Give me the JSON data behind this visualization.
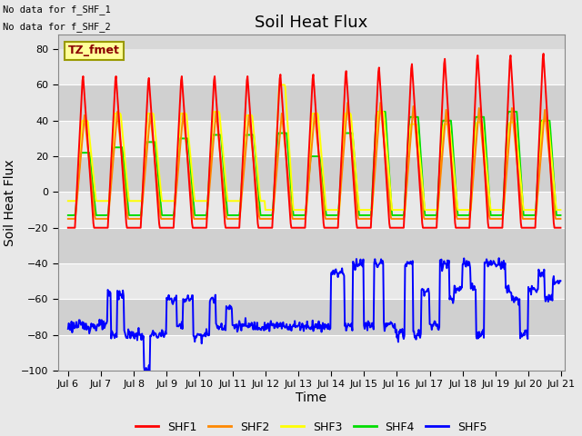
{
  "title": "Soil Heat Flux",
  "xlabel": "Time",
  "ylabel": "Soil Heat Flux",
  "ylim": [
    -100,
    88
  ],
  "yticks": [
    -100,
    -80,
    -60,
    -40,
    -20,
    0,
    20,
    40,
    60,
    80
  ],
  "xlim_days": [
    5.7,
    21.1
  ],
  "xtick_days": [
    6,
    7,
    8,
    9,
    10,
    11,
    12,
    13,
    14,
    15,
    16,
    17,
    18,
    19,
    20,
    21
  ],
  "xtick_labels": [
    "Jul 6",
    "Jul 7",
    "Jul 8",
    "Jul 9",
    "Jul 10",
    "Jul 11",
    "Jul 12",
    "Jul 13",
    "Jul 14",
    "Jul 15",
    "Jul 16",
    "Jul 17",
    "Jul 18",
    "Jul 19",
    "Jul 20",
    "Jul 21"
  ],
  "series_colors": [
    "#ff0000",
    "#ff8800",
    "#ffff00",
    "#00dd00",
    "#0000ff"
  ],
  "series_names": [
    "SHF1",
    "SHF2",
    "SHF3",
    "SHF4",
    "SHF5"
  ],
  "no_data_text_1": "No data for f_SHF_1",
  "no_data_text_2": "No data for f_SHF_2",
  "tz_label": "TZ_fmet",
  "fig_bg": "#e8e8e8",
  "plot_bg": "#d8d8d8",
  "band_light": "#e8e8e8",
  "band_dark": "#d0d0d0",
  "title_fontsize": 13,
  "axis_label_fontsize": 10,
  "tick_fontsize": 8,
  "legend_fontsize": 9,
  "linewidth": 1.4
}
